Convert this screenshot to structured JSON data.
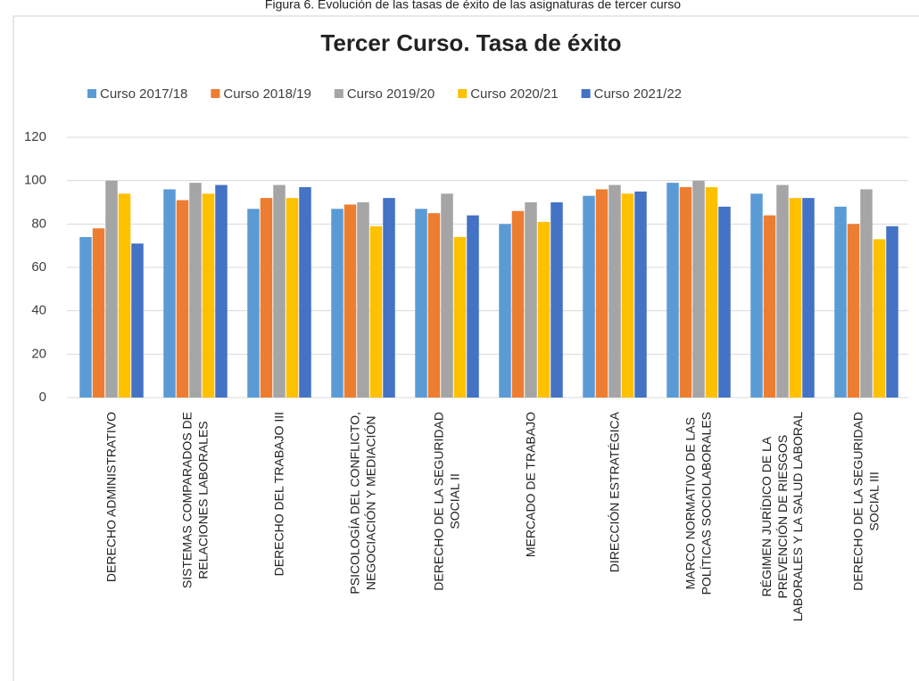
{
  "chart_data": {
    "type": "bar",
    "caption": "Figura 6. Evolución de las tasas de éxito de las asignaturas de tercer curso",
    "title": "Tercer Curso. Tasa de éxito",
    "categories": [
      "DERECHO ADMINISTRATIVO",
      "SISTEMAS COMPARADOS DE\nRELACIONES LABORALES",
      "DERECHO DEL TRABAJO III",
      "PSICOLOGÍA DEL CONFLICTO,\nNEGOCIACIÓN Y MEDIACIÓN",
      "DERECHO DE LA SEGURIDAD\nSOCIAL II",
      "MERCADO DE TRABAJO",
      "DIRECCIÓN ESTRATÉGICA",
      "MARCO NORMATIVO DE LAS\nPOLÍTICAS SOCIOLABORALES",
      "RÉGIMEN JURÍDICO DE LA\nPREVENCIÓN DE RIESGOS\nLABORALES Y LA SALUD LABORAL",
      "DERECHO DE LA SEGURIDAD\nSOCIAL III"
    ],
    "series": [
      {
        "name": "Curso 2017/18",
        "color": "#5b9bd5",
        "values": [
          74,
          96,
          87,
          87,
          87,
          80,
          93,
          99,
          94,
          88
        ]
      },
      {
        "name": "Curso 2018/19",
        "color": "#ed7d31",
        "values": [
          78,
          91,
          92,
          89,
          85,
          86,
          96,
          97,
          84,
          80
        ]
      },
      {
        "name": "Curso 2019/20",
        "color": "#a5a5a5",
        "values": [
          100,
          99,
          98,
          90,
          94,
          90,
          98,
          100,
          98,
          96
        ]
      },
      {
        "name": "Curso 2020/21",
        "color": "#ffc000",
        "values": [
          94,
          94,
          92,
          79,
          74,
          81,
          94,
          97,
          92,
          73
        ]
      },
      {
        "name": "Curso 2021/22",
        "color": "#4472c4",
        "values": [
          71,
          98,
          97,
          92,
          84,
          90,
          95,
          88,
          92,
          79
        ]
      }
    ],
    "ylim": [
      0,
      120
    ],
    "yticks": [
      0,
      20,
      40,
      60,
      80,
      100,
      120
    ],
    "grid": true,
    "legend": "top"
  }
}
